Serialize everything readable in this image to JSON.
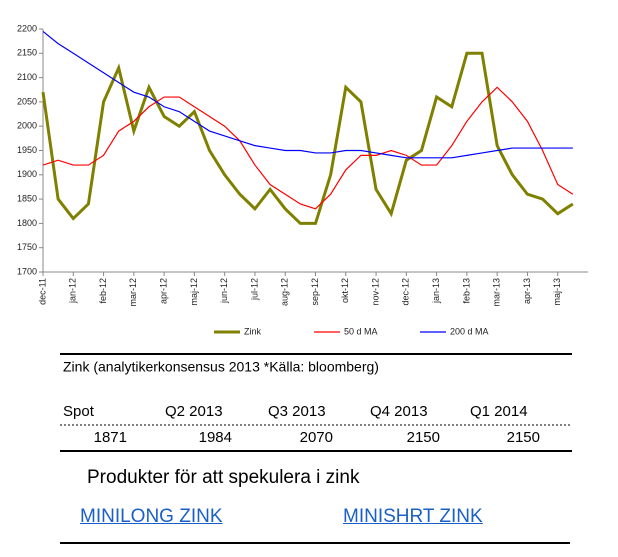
{
  "chart_data": {
    "type": "line",
    "xlim": [
      0,
      18
    ],
    "xticks": [
      {
        "value": 0,
        "label": "dec-11"
      },
      {
        "value": 1,
        "label": "jan-12"
      },
      {
        "value": 2,
        "label": "feb-12"
      },
      {
        "value": 3,
        "label": "mar-12"
      },
      {
        "value": 4,
        "label": "apr-12"
      },
      {
        "value": 5,
        "label": "maj-12"
      },
      {
        "value": 6,
        "label": "jun-12"
      },
      {
        "value": 7,
        "label": "jul-12"
      },
      {
        "value": 8,
        "label": "aug-12"
      },
      {
        "value": 9,
        "label": "sep-12"
      },
      {
        "value": 10,
        "label": "okt-12"
      },
      {
        "value": 11,
        "label": "nov-12"
      },
      {
        "value": 12,
        "label": "dec-12"
      },
      {
        "value": 13,
        "label": "jan-13"
      },
      {
        "value": 14,
        "label": "feb-13"
      },
      {
        "value": 15,
        "label": "mar-13"
      },
      {
        "value": 16,
        "label": "apr-13"
      },
      {
        "value": 17,
        "label": "maj-13"
      }
    ],
    "ylim": [
      1700,
      2200
    ],
    "yticks": [
      1700,
      1750,
      1800,
      1850,
      1900,
      1950,
      2000,
      2050,
      2100,
      2150,
      2200
    ],
    "x": [
      0,
      0.5,
      1,
      1.5,
      2,
      2.5,
      3,
      3.5,
      4,
      4.5,
      5,
      5.5,
      6,
      6.5,
      7,
      7.5,
      8,
      8.5,
      9,
      9.5,
      10,
      10.5,
      11,
      11.5,
      12,
      12.5,
      13,
      13.5,
      14,
      14.5,
      15,
      15.5,
      16,
      16.5,
      17,
      17.5
    ],
    "series": [
      {
        "name": "Zink",
        "color": "#808000",
        "values": [
          2070,
          1850,
          1810,
          1840,
          2050,
          2120,
          1990,
          2080,
          2020,
          2000,
          2030,
          1950,
          1900,
          1860,
          1830,
          1870,
          1830,
          1800,
          1800,
          1900,
          2080,
          2050,
          1870,
          1820,
          1930,
          1950,
          2060,
          2040,
          2150,
          2150,
          1960,
          1900,
          1860,
          1850,
          1820,
          1840
        ]
      },
      {
        "name": "50 d MA",
        "color": "#ff0000",
        "values": [
          1920,
          1930,
          1920,
          1920,
          1940,
          1990,
          2010,
          2040,
          2060,
          2060,
          2040,
          2020,
          2000,
          1970,
          1920,
          1880,
          1860,
          1840,
          1830,
          1860,
          1910,
          1940,
          1940,
          1950,
          1940,
          1920,
          1920,
          1960,
          2010,
          2050,
          2080,
          2050,
          2010,
          1950,
          1880,
          1860
        ]
      },
      {
        "name": "200 d MA",
        "color": "#0000ff",
        "values": [
          2195,
          2170,
          2150,
          2130,
          2110,
          2090,
          2070,
          2060,
          2040,
          2030,
          2010,
          1990,
          1980,
          1970,
          1960,
          1955,
          1950,
          1950,
          1945,
          1945,
          1950,
          1950,
          1945,
          1940,
          1935,
          1935,
          1935,
          1935,
          1940,
          1945,
          1950,
          1955,
          1955,
          1955,
          1955,
          1955
        ]
      }
    ]
  },
  "table": {
    "title": "Zink (analytikerkonsensus 2013 *Källa: bloomberg)",
    "header": [
      "Spot",
      "Q2 2013",
      "Q3 2013",
      "Q4 2013",
      "Q1 2014"
    ],
    "row": [
      1871,
      1984,
      2070,
      2150,
      2150
    ]
  },
  "products": {
    "heading": "Produkter för att spekulera i zink",
    "links": [
      "MINILONG ZINK",
      "MINISHRT ZINK"
    ]
  }
}
